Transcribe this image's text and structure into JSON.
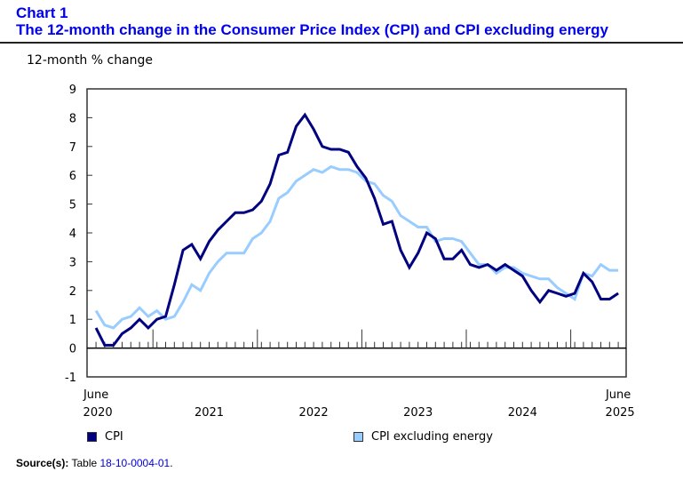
{
  "header": {
    "chart_number": "Chart 1",
    "title": "The 12-month change in the Consumer Price Index (CPI) and CPI excluding energy"
  },
  "source": {
    "label": "Source(s):",
    "prefix": "Table",
    "link_text": "18-10-0004-01",
    "suffix": "."
  },
  "colors": {
    "cpi": "#000080",
    "cpi_excl_energy": "#99ccff",
    "title": "#0000ee"
  },
  "chart_data": {
    "type": "line",
    "title": "The 12-month change in the Consumer Price Index (CPI) and CPI excluding energy",
    "xlabel": "",
    "ylabel": "12-month % change",
    "ylim": [
      -1,
      9
    ],
    "yticks": [
      -1,
      0,
      1,
      2,
      3,
      4,
      5,
      6,
      7,
      8,
      9
    ],
    "grid": false,
    "legend_position": "bottom",
    "x_start": "June 2020",
    "x_end": "June 2025",
    "x_tick_labels": [
      {
        "top": "June",
        "bottom": "2020",
        "month_index": 0
      },
      {
        "top": "",
        "bottom": "2021",
        "month_index": 13
      },
      {
        "top": "",
        "bottom": "2022",
        "month_index": 25
      },
      {
        "top": "",
        "bottom": "2023",
        "month_index": 37
      },
      {
        "top": "",
        "bottom": "2024",
        "month_index": 49
      },
      {
        "top": "June",
        "bottom": "2025",
        "month_index": 60
      }
    ],
    "year_start_month_indices": [
      7,
      19,
      31,
      43,
      55
    ],
    "x": [
      "2020-06",
      "2020-07",
      "2020-08",
      "2020-09",
      "2020-10",
      "2020-11",
      "2020-12",
      "2021-01",
      "2021-02",
      "2021-03",
      "2021-04",
      "2021-05",
      "2021-06",
      "2021-07",
      "2021-08",
      "2021-09",
      "2021-10",
      "2021-11",
      "2021-12",
      "2022-01",
      "2022-02",
      "2022-03",
      "2022-04",
      "2022-05",
      "2022-06",
      "2022-07",
      "2022-08",
      "2022-09",
      "2022-10",
      "2022-11",
      "2022-12",
      "2023-01",
      "2023-02",
      "2023-03",
      "2023-04",
      "2023-05",
      "2023-06",
      "2023-07",
      "2023-08",
      "2023-09",
      "2023-10",
      "2023-11",
      "2023-12",
      "2024-01",
      "2024-02",
      "2024-03",
      "2024-04",
      "2024-05",
      "2024-06",
      "2024-07",
      "2024-08",
      "2024-09",
      "2024-10",
      "2024-11",
      "2024-12",
      "2025-01",
      "2025-02",
      "2025-03",
      "2025-04",
      "2025-05",
      "2025-06"
    ],
    "series": [
      {
        "name": "CPI",
        "color": "#000080",
        "values": [
          0.7,
          0.1,
          0.1,
          0.5,
          0.7,
          1.0,
          0.7,
          1.0,
          1.1,
          2.2,
          3.4,
          3.6,
          3.1,
          3.7,
          4.1,
          4.4,
          4.7,
          4.7,
          4.8,
          5.1,
          5.7,
          6.7,
          6.8,
          7.7,
          8.1,
          7.6,
          7.0,
          6.9,
          6.9,
          6.8,
          6.3,
          5.9,
          5.2,
          4.3,
          4.4,
          3.4,
          2.8,
          3.3,
          4.0,
          3.8,
          3.1,
          3.1,
          3.4,
          2.9,
          2.8,
          2.9,
          2.7,
          2.9,
          2.7,
          2.5,
          2.0,
          1.6,
          2.0,
          1.9,
          1.8,
          1.9,
          2.6,
          2.3,
          1.7,
          1.7,
          1.9
        ]
      },
      {
        "name": "CPI excluding energy",
        "color": "#99ccff",
        "values": [
          1.3,
          0.8,
          0.7,
          1.0,
          1.1,
          1.4,
          1.1,
          1.3,
          1.0,
          1.1,
          1.6,
          2.2,
          2.0,
          2.6,
          3.0,
          3.3,
          3.3,
          3.3,
          3.8,
          4.0,
          4.4,
          5.2,
          5.4,
          5.8,
          6.0,
          6.2,
          6.1,
          6.3,
          6.2,
          6.2,
          6.1,
          5.8,
          5.7,
          5.3,
          5.1,
          4.6,
          4.4,
          4.2,
          4.2,
          3.7,
          3.8,
          3.8,
          3.7,
          3.3,
          2.9,
          2.9,
          2.6,
          2.8,
          2.8,
          2.6,
          2.5,
          2.4,
          2.4,
          2.1,
          1.9,
          1.7,
          2.6,
          2.5,
          2.9,
          2.7,
          2.7
        ]
      }
    ]
  }
}
